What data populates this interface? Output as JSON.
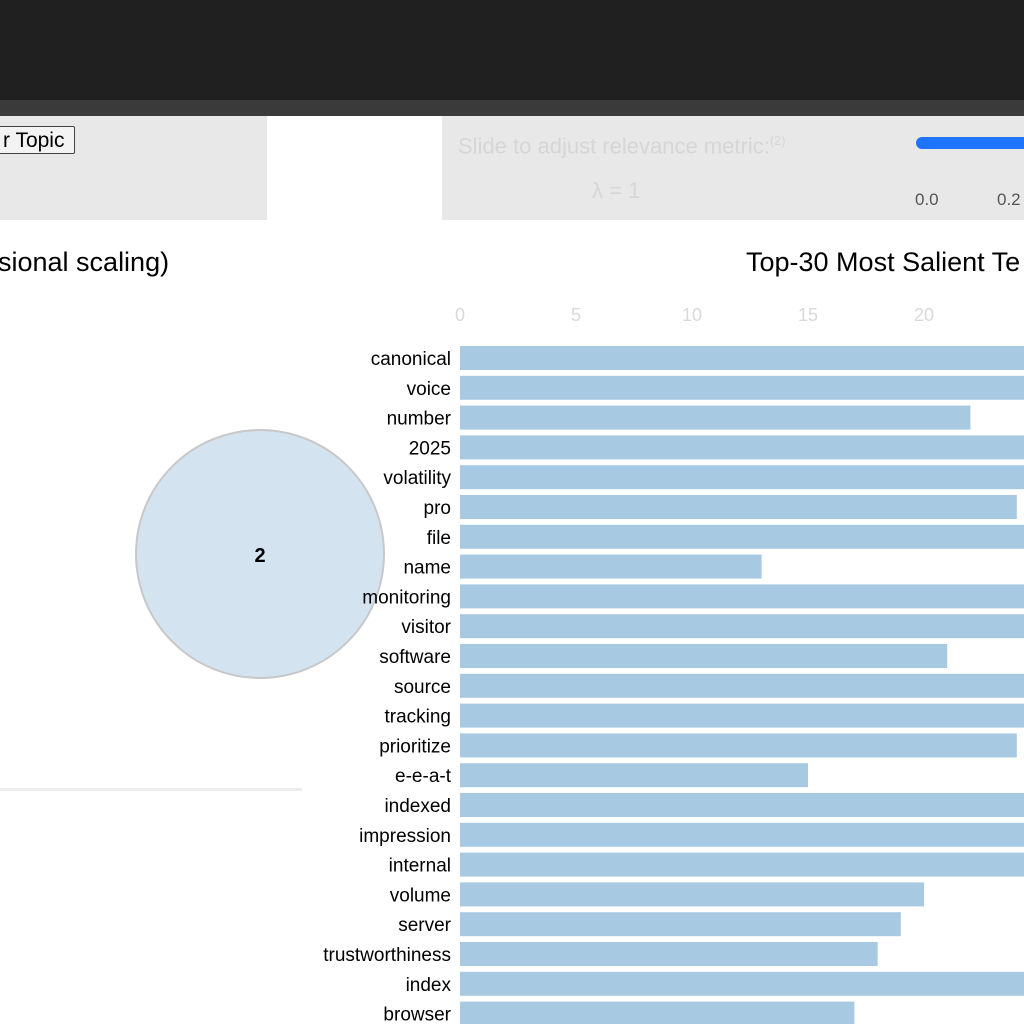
{
  "controls": {
    "topic_button_label": "r Topic",
    "slider_label": "Slide to adjust relevance metric:",
    "slider_help": "(2)",
    "lambda_text": "λ = 1",
    "slider_ticks": [
      "0.0",
      "0.2"
    ],
    "slider_color": "#1e74ff"
  },
  "panels": {
    "mds_title": "sional scaling)",
    "bar_title": "Top-30 Most Salient Te"
  },
  "topic_circle": {
    "label": "2",
    "fill": "#d3e3ef",
    "stroke": "#c8c8c8"
  },
  "chart_data": {
    "type": "bar",
    "orientation": "horizontal",
    "title": "Top-30 Most Salient Te",
    "x_ticks": [
      0,
      5,
      10,
      15,
      20
    ],
    "xlim": [
      0,
      24.6
    ],
    "bar_color": "#a7c9e2",
    "categories": [
      "canonical",
      "voice",
      "number",
      "2025",
      "volatility",
      "pro",
      "file",
      "name",
      "monitoring",
      "visitor",
      "software",
      "source",
      "tracking",
      "prioritize",
      "e-e-a-t",
      "indexed",
      "impression",
      "internal",
      "volume",
      "server",
      "trustworthiness",
      "index",
      "browser"
    ],
    "values": [
      25,
      25,
      22,
      25,
      25,
      24,
      25,
      13,
      25,
      25,
      21,
      25,
      25,
      24,
      15,
      25,
      25,
      25,
      20,
      19,
      18,
      25,
      17
    ]
  }
}
